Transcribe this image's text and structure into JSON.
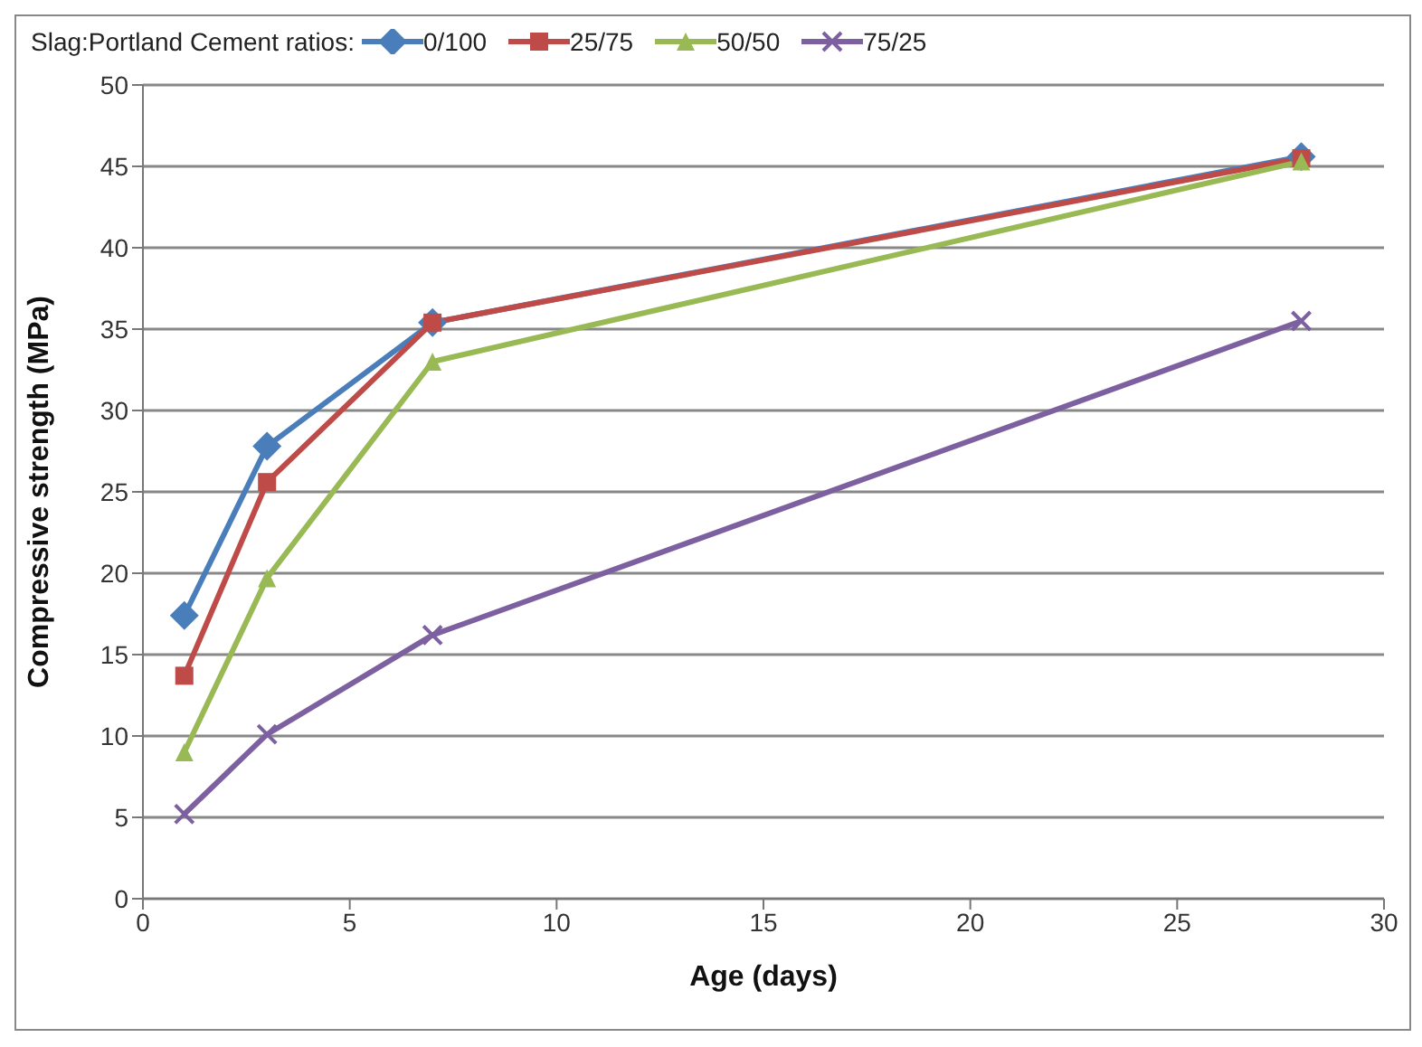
{
  "chart_data": {
    "type": "line",
    "xlabel": "Age (days)",
    "ylabel": "Compressive strength (MPa)",
    "legend_title": "Slag:Portland Cement ratios:",
    "legend": "top",
    "grid": "y",
    "xlim": [
      0,
      30
    ],
    "xticks": [
      0,
      5,
      10,
      15,
      20,
      25,
      30
    ],
    "ylim": [
      0,
      50
    ],
    "yticks": [
      0,
      5,
      10,
      15,
      20,
      25,
      30,
      35,
      40,
      45,
      50
    ],
    "x": [
      1,
      3,
      7,
      28
    ],
    "series": [
      {
        "name": "0/100",
        "color": "#4a7ebb",
        "marker": "diamond",
        "values": [
          17.4,
          27.8,
          35.4,
          45.6
        ]
      },
      {
        "name": "25/75",
        "color": "#be4b48",
        "marker": "square",
        "values": [
          13.7,
          25.6,
          35.4,
          45.5
        ]
      },
      {
        "name": "50/50",
        "color": "#98b954",
        "marker": "triangle",
        "values": [
          9.0,
          19.7,
          33.0,
          45.3
        ]
      },
      {
        "name": "75/25",
        "color": "#7d60a0",
        "marker": "cross",
        "values": [
          5.2,
          10.1,
          16.2,
          35.5
        ]
      }
    ]
  }
}
